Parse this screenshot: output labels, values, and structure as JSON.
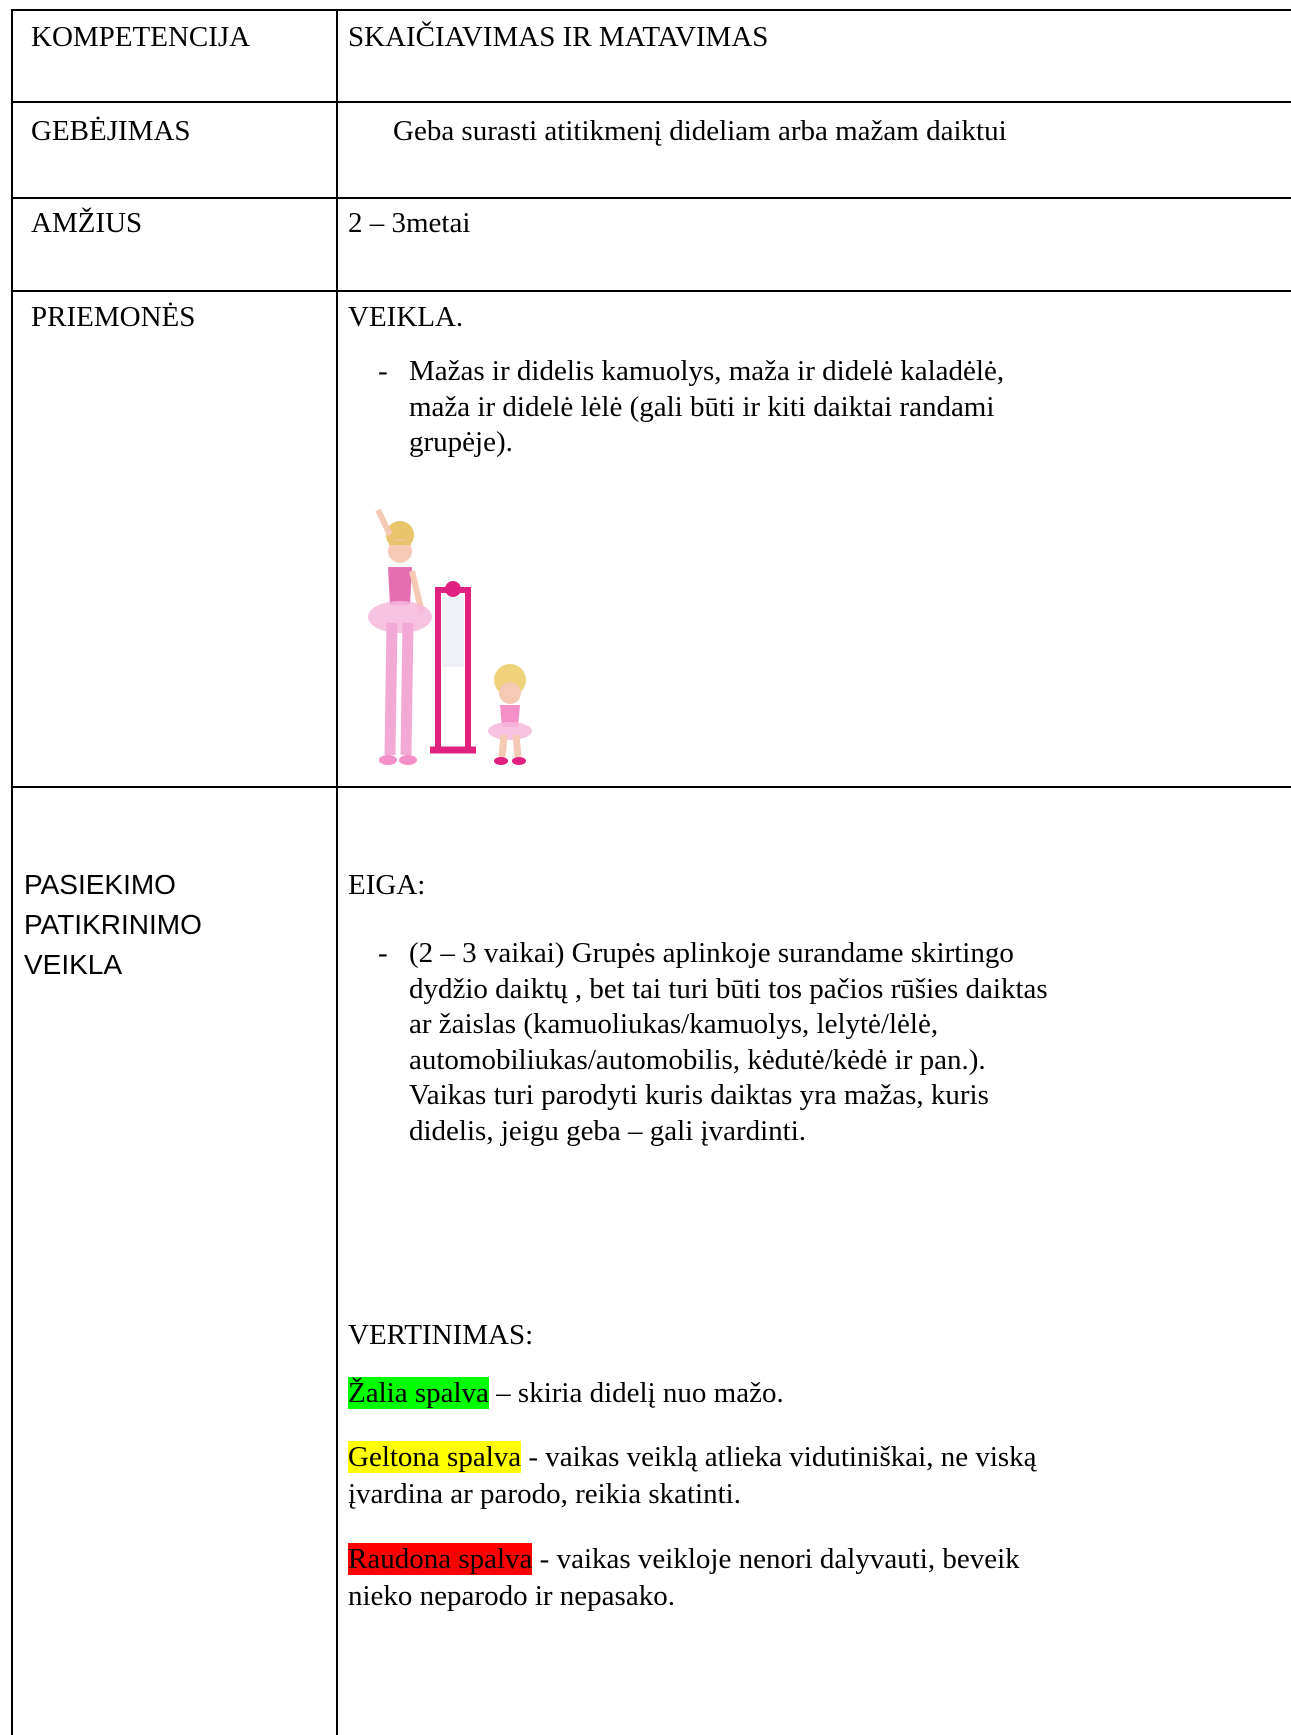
{
  "table": {
    "rows": [
      {
        "label": "KOMPETENCIJA",
        "text": "SKAIČIAVIMAS IR MATAVIMAS"
      },
      {
        "label": "GEBĖJIMAS",
        "text": "Geba surasti atitikmenį dideliam arba mažam daiktui"
      },
      {
        "label": "AMŽIUS",
        "text": "2 – 3metai"
      },
      {
        "label": "PRIEMONĖS",
        "heading": "VEIKLA.",
        "bullet_marker": "-",
        "bullet_lines": [
          "Mažas ir didelis kamuolys, maža ir didelė kaladėlė,",
          "maža ir didelė lėlė (gali būti ir kiti daiktai randami",
          "grupėje)."
        ]
      },
      {
        "label_lines": [
          "PASIEKIMO",
          "PATIKRINIMO",
          "VEIKLA"
        ],
        "heading": "EIGA:",
        "bullet_marker": "-",
        "bullet_lines": [
          "(2 – 3 vaikai) Grupės aplinkoje surandame skirtingo",
          "dydžio daiktų , bet tai turi būti tos pačios rūšies daiktas",
          "ar žaislas (kamuoliukas/kamuolys, lelytė/lėlė,",
          "automobiliukas/automobilis, kėdutė/kėdė ir pan.).",
          "Vaikas turi parodyti kuris daiktas yra mažas, kuris",
          "didelis, jeigu geba – gali įvardinti."
        ],
        "assessment_heading": "VERTINIMAS:",
        "assessment": [
          {
            "color_name": "Žalia spalva",
            "highlight": "#00ff00",
            "lines": [
              " – skiria didelį nuo mažo."
            ]
          },
          {
            "color_name": "Geltona spalva",
            "highlight": "#ffff00",
            "lines": [
              " - vaikas veiklą atlieka vidutiniškai, ne viską",
              "įvardina ar parodo, reikia skatinti."
            ]
          },
          {
            "color_name": "Raudona spalva",
            "highlight": "#ff0000",
            "lines": [
              " - vaikas veikloje nenori dalyvauti, beveik",
              "nieko neparodo ir nepasako."
            ]
          }
        ]
      }
    ]
  }
}
